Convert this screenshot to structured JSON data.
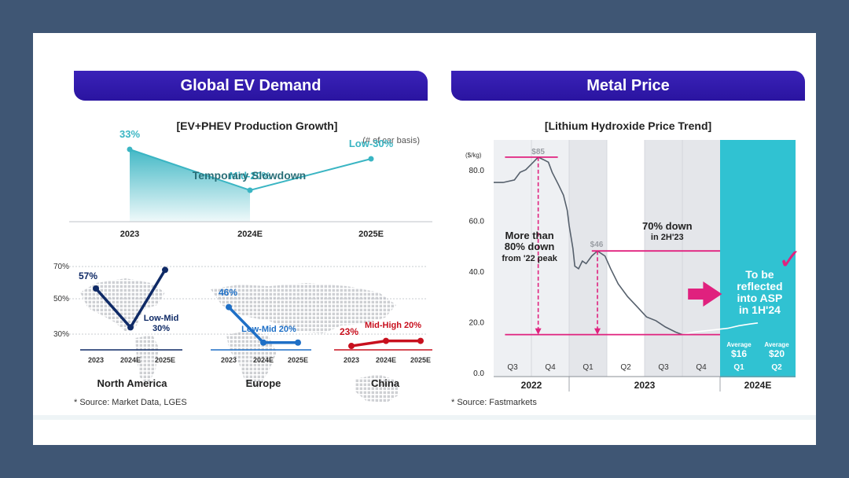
{
  "left_panel": {
    "banner": "Global EV Demand",
    "source": "* Source: Market Data, LGES"
  },
  "right_panel": {
    "banner": "Metal Price",
    "source": "* Source: Fastmarkets"
  },
  "colors": {
    "banner": "#2a14a0",
    "teal": "#3ab5c3",
    "navy": "#0f2a66",
    "blue": "#1e6fc6",
    "red": "#c8101e",
    "magenta": "#e0217e",
    "price_line": "#56606c",
    "shade": "#e4e6ea",
    "highlight": "#30c2d2"
  },
  "chart_data": [
    {
      "id": "growth",
      "type": "area",
      "title": "[EV+PHEV Production Growth]",
      "subtitle": "(# of car basis)",
      "categories": [
        "2023",
        "2024E",
        "2025E"
      ],
      "values": [
        33,
        20,
        30
      ],
      "labels": [
        "33%",
        "Mid-20%",
        "Low-30%"
      ],
      "annotation": "Temporary Slowdown",
      "ylim": [
        10,
        40
      ]
    },
    {
      "id": "regions",
      "type": "line",
      "ylim": [
        20,
        70
      ],
      "yticks": [
        30,
        50,
        70
      ],
      "yticklabels": [
        "30%",
        "50%",
        "70%"
      ],
      "categories": [
        "2023",
        "2024E",
        "2025E"
      ],
      "series": [
        {
          "name": "North America",
          "values": [
            57,
            34,
            68
          ],
          "labels": [
            "57%",
            "Low-Mid\n30%",
            ""
          ]
        },
        {
          "name": "Europe",
          "values": [
            46,
            25,
            25
          ],
          "labels": [
            "46%",
            "Low-Mid 20%",
            ""
          ]
        },
        {
          "name": "China",
          "values": [
            23,
            26,
            26
          ],
          "labels": [
            "23%",
            "Mid-High 20%",
            ""
          ]
        }
      ]
    },
    {
      "id": "lithium",
      "type": "line",
      "title": "[Lithium Hydroxide Price Trend]",
      "ylabel": "($/kg)",
      "ylim": [
        0,
        95
      ],
      "yticks": [
        0,
        20,
        40,
        60,
        80
      ],
      "yticklabels": [
        "0.0",
        "20.0",
        "40.0",
        "60.0",
        "80.0"
      ],
      "quarters": [
        "Q3",
        "Q4",
        "Q1",
        "Q2",
        "Q3",
        "Q4",
        "Q1",
        "Q2"
      ],
      "years": [
        "2022",
        "2023",
        "2024E"
      ],
      "x": [
        0,
        0.25,
        0.55,
        0.7,
        0.85,
        1.05,
        1.18,
        1.32,
        1.45,
        1.55,
        1.72,
        1.85,
        1.95,
        2.0,
        2.1,
        2.15,
        2.25,
        2.35,
        2.45,
        2.6,
        2.75,
        2.95,
        3.1,
        3.3,
        3.55,
        3.8,
        4.05,
        4.3,
        4.55,
        4.82,
        5.0
      ],
      "y": [
        75,
        75,
        76,
        79,
        80,
        83,
        85,
        84,
        83,
        79,
        74,
        70,
        64,
        58,
        49,
        42,
        41,
        44,
        43,
        46,
        48,
        46,
        41,
        35,
        30,
        26,
        22,
        20.5,
        18,
        16,
        15
      ],
      "projection_x": [
        5.0,
        5.3,
        5.6,
        5.9,
        6.2,
        6.5,
        6.8,
        7.0
      ],
      "projection_y": [
        15,
        16,
        16.5,
        17,
        17.5,
        18.5,
        19.2,
        19.6
      ],
      "peak_label": "$85",
      "mid_label": "$46",
      "drop_note": [
        "More than",
        "80% down",
        "from '22 peak"
      ],
      "h2_note": [
        "70% down",
        "in 2H'23"
      ],
      "asp_note": [
        "To be",
        "reflected",
        "into ASP",
        "in 1H'24"
      ],
      "avg_label": "Average",
      "averages": [
        "$16",
        "$20"
      ],
      "checkmark": "✓"
    }
  ]
}
